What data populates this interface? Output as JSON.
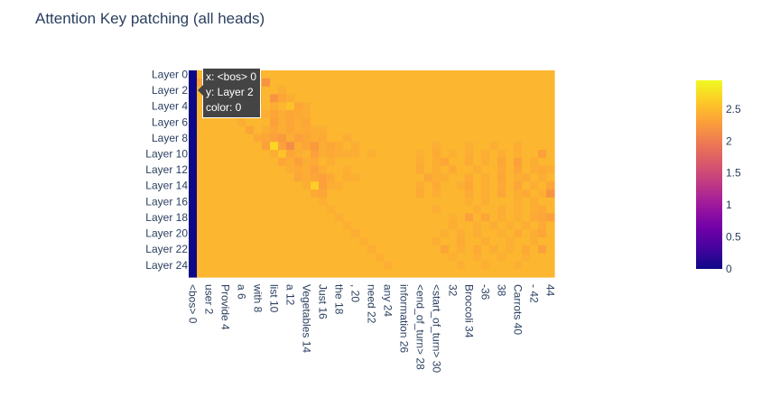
{
  "chart_data": {
    "type": "heatmap",
    "title": "Attention Key patching (all heads)",
    "x_tick_labels": [
      "<bos> 0",
      "user 2",
      "Provide 4",
      "a 6",
      "with 8",
      "list 10",
      "a 12",
      "Vegetables 14",
      "Just 16",
      "the 18",
      ", 20",
      "need 22",
      "any 24",
      "information 26",
      "<end_of_turn> 28",
      "<start_of_turn> 30",
      "32",
      "Broccoli 34",
      "-36",
      "38",
      "Carrots 40",
      "- 42",
      "44"
    ],
    "x_tick_positions": [
      0,
      2,
      4,
      6,
      8,
      10,
      12,
      14,
      16,
      18,
      20,
      22,
      24,
      26,
      28,
      30,
      32,
      34,
      36,
      38,
      40,
      42,
      44
    ],
    "n_positions": 45,
    "y_tick_labels": [
      "Layer 0",
      "Layer 2",
      "Layer 4",
      "Layer 6",
      "Layer 8",
      "Layer 10",
      "Layer 12",
      "Layer 14",
      "Layer 16",
      "Layer 18",
      "Layer 20",
      "Layer 22",
      "Layer 24"
    ],
    "y_tick_positions": [
      0,
      2,
      4,
      6,
      8,
      10,
      12,
      14,
      16,
      18,
      20,
      22,
      24
    ],
    "n_layers": 26,
    "base_value": 2.47,
    "zero_column": 0,
    "cells": [
      [
        1,
        2.3
      ],
      [
        2,
        2.2
      ],
      [
        5,
        2.45
      ],
      [
        9,
        2.2
      ],
      [
        2,
        2.35
      ],
      [
        7,
        2.4
      ],
      [
        11,
        2.4
      ],
      [
        3,
        2.3
      ],
      [
        6,
        2.35
      ],
      [
        7,
        2.3
      ],
      [
        8,
        2.35
      ],
      [
        10,
        2.2
      ],
      [
        11,
        2.35
      ],
      [
        12,
        2.4
      ],
      [
        4,
        2.35
      ],
      [
        10,
        2.4
      ],
      [
        12,
        2.55
      ],
      [
        13,
        2.35
      ],
      [
        14,
        2.4
      ],
      [
        5,
        2.35
      ],
      [
        9,
        2.4
      ],
      [
        10,
        2.35
      ],
      [
        11,
        2.4
      ],
      [
        12,
        2.35
      ],
      [
        13,
        2.38
      ],
      [
        14,
        2.4
      ],
      [
        6,
        2.4
      ],
      [
        10,
        2.3
      ],
      [
        11,
        2.4
      ],
      [
        12,
        2.35
      ],
      [
        13,
        2.4
      ],
      [
        14,
        2.35
      ],
      [
        7,
        2.35
      ],
      [
        9,
        2.4
      ],
      [
        10,
        2.35
      ],
      [
        11,
        2.4
      ],
      [
        12,
        2.35
      ],
      [
        13,
        2.4
      ],
      [
        14,
        2.38
      ],
      [
        15,
        2.4
      ],
      [
        16,
        2.4
      ],
      [
        8,
        2.38
      ],
      [
        9,
        2.35
      ],
      [
        10,
        2.3
      ],
      [
        11,
        2.25
      ],
      [
        12,
        2.4
      ],
      [
        13,
        2.3
      ],
      [
        14,
        2.35
      ],
      [
        15,
        2.4
      ],
      [
        16,
        2.38
      ],
      [
        19,
        2.4
      ],
      [
        9,
        2.3
      ],
      [
        10,
        2.72
      ],
      [
        11,
        2.3
      ],
      [
        12,
        2.15
      ],
      [
        13,
        2.4
      ],
      [
        14,
        2.35
      ],
      [
        15,
        2.25
      ],
      [
        16,
        2.4
      ],
      [
        17,
        2.35
      ],
      [
        18,
        2.4
      ],
      [
        20,
        2.4
      ],
      [
        30,
        2.4
      ],
      [
        34,
        2.4
      ],
      [
        37,
        2.4
      ],
      [
        40,
        2.4
      ],
      [
        10,
        2.4
      ],
      [
        11,
        2.55
      ],
      [
        12,
        2.35
      ],
      [
        13,
        2.4
      ],
      [
        14,
        2.45
      ],
      [
        15,
        2.3
      ],
      [
        16,
        2.4
      ],
      [
        17,
        2.38
      ],
      [
        18,
        2.4
      ],
      [
        19,
        2.4
      ],
      [
        20,
        2.4
      ],
      [
        22,
        2.42
      ],
      [
        28,
        2.42
      ],
      [
        30,
        2.38
      ],
      [
        32,
        2.42
      ],
      [
        34,
        2.4
      ],
      [
        36,
        2.4
      ],
      [
        38,
        2.4
      ],
      [
        40,
        2.42
      ],
      [
        43,
        2.3
      ],
      [
        11,
        2.35
      ],
      [
        12,
        2.4
      ],
      [
        13,
        2.3
      ],
      [
        14,
        2.4
      ],
      [
        15,
        2.38
      ],
      [
        17,
        2.4
      ],
      [
        28,
        2.4
      ],
      [
        30,
        2.4
      ],
      [
        31,
        2.35
      ],
      [
        34,
        2.38
      ],
      [
        36,
        2.4
      ],
      [
        38,
        2.35
      ],
      [
        40,
        2.3
      ],
      [
        42,
        2.4
      ],
      [
        12,
        2.4
      ],
      [
        13,
        2.38
      ],
      [
        14,
        2.4
      ],
      [
        15,
        2.3
      ],
      [
        16,
        2.4
      ],
      [
        19,
        2.42
      ],
      [
        28,
        2.38
      ],
      [
        30,
        2.4
      ],
      [
        32,
        2.38
      ],
      [
        35,
        2.4
      ],
      [
        38,
        2.38
      ],
      [
        40,
        2.35
      ],
      [
        42,
        2.4
      ],
      [
        43,
        2.38
      ],
      [
        44,
        2.4
      ],
      [
        13,
        2.35
      ],
      [
        14,
        2.4
      ],
      [
        15,
        2.35
      ],
      [
        16,
        2.3
      ],
      [
        17,
        2.38
      ],
      [
        19,
        2.4
      ],
      [
        20,
        2.42
      ],
      [
        29,
        2.35
      ],
      [
        30,
        2.42
      ],
      [
        31,
        2.4
      ],
      [
        34,
        2.38
      ],
      [
        36,
        2.4
      ],
      [
        38,
        2.35
      ],
      [
        40,
        2.4
      ],
      [
        41,
        2.38
      ],
      [
        43,
        2.4
      ],
      [
        14,
        2.4
      ],
      [
        15,
        2.65
      ],
      [
        16,
        2.3
      ],
      [
        17,
        2.4
      ],
      [
        18,
        2.42
      ],
      [
        28,
        2.4
      ],
      [
        30,
        2.38
      ],
      [
        33,
        2.4
      ],
      [
        34,
        2.35
      ],
      [
        36,
        2.42
      ],
      [
        38,
        2.38
      ],
      [
        40,
        2.35
      ],
      [
        42,
        2.4
      ],
      [
        44,
        2.35
      ],
      [
        15,
        2.38
      ],
      [
        16,
        2.35
      ],
      [
        28,
        2.38
      ],
      [
        30,
        2.4
      ],
      [
        34,
        2.38
      ],
      [
        36,
        2.4
      ],
      [
        38,
        2.35
      ],
      [
        40,
        2.4
      ],
      [
        41,
        2.38
      ],
      [
        43,
        2.42
      ],
      [
        44,
        2.2
      ],
      [
        16,
        2.42
      ],
      [
        34,
        2.42
      ],
      [
        36,
        2.4
      ],
      [
        40,
        2.42
      ],
      [
        42,
        2.4
      ],
      [
        17,
        2.42
      ],
      [
        30,
        2.4
      ],
      [
        35,
        2.42
      ],
      [
        38,
        2.4
      ],
      [
        40,
        2.42
      ],
      [
        42,
        2.4
      ],
      [
        43,
        2.38
      ],
      [
        18,
        2.4
      ],
      [
        32,
        2.42
      ],
      [
        34,
        2.3
      ],
      [
        36,
        2.35
      ],
      [
        38,
        2.4
      ],
      [
        40,
        2.42
      ],
      [
        42,
        2.38
      ],
      [
        43,
        2.35
      ],
      [
        44,
        2.3
      ],
      [
        19,
        2.42
      ],
      [
        32,
        2.4
      ],
      [
        35,
        2.42
      ],
      [
        37,
        2.4
      ],
      [
        39,
        2.42
      ],
      [
        41,
        2.4
      ],
      [
        43,
        2.38
      ],
      [
        20,
        2.4
      ],
      [
        31,
        2.42
      ],
      [
        33,
        2.4
      ],
      [
        35,
        2.4
      ],
      [
        38,
        2.42
      ],
      [
        40,
        2.38
      ],
      [
        42,
        2.4
      ],
      [
        43,
        2.35
      ],
      [
        21,
        2.42
      ],
      [
        30,
        2.4
      ],
      [
        33,
        2.38
      ],
      [
        36,
        2.4
      ],
      [
        39,
        2.42
      ],
      [
        42,
        2.4
      ],
      [
        22,
        2.4
      ],
      [
        31,
        2.35
      ],
      [
        33,
        2.4
      ],
      [
        35,
        2.38
      ],
      [
        37,
        2.4
      ],
      [
        39,
        2.42
      ],
      [
        41,
        2.38
      ],
      [
        43,
        2.3
      ],
      [
        23,
        2.42
      ],
      [
        32,
        2.42
      ],
      [
        35,
        2.42
      ],
      [
        38,
        2.42
      ],
      [
        41,
        2.42
      ],
      [
        24,
        2.42
      ],
      [
        33,
        2.42
      ],
      [
        36,
        2.42
      ],
      [
        40,
        2.42
      ]
    ],
    "cell_layers": [
      1,
      1,
      1,
      1,
      2,
      2,
      2,
      3,
      3,
      3,
      3,
      3,
      3,
      3,
      4,
      4,
      4,
      4,
      4,
      5,
      5,
      5,
      5,
      5,
      5,
      5,
      6,
      6,
      6,
      6,
      6,
      6,
      7,
      7,
      7,
      7,
      7,
      7,
      7,
      7,
      7,
      8,
      8,
      8,
      8,
      8,
      8,
      8,
      8,
      8,
      8,
      9,
      9,
      9,
      9,
      9,
      9,
      9,
      9,
      9,
      9,
      9,
      9,
      9,
      9,
      9,
      10,
      10,
      10,
      10,
      10,
      10,
      10,
      10,
      10,
      10,
      10,
      10,
      10,
      10,
      10,
      10,
      10,
      10,
      10,
      10,
      11,
      11,
      11,
      11,
      11,
      11,
      11,
      11,
      11,
      11,
      11,
      11,
      11,
      11,
      12,
      12,
      12,
      12,
      12,
      12,
      12,
      12,
      12,
      12,
      12,
      12,
      12,
      12,
      12,
      13,
      13,
      13,
      13,
      13,
      13,
      13,
      13,
      13,
      13,
      13,
      13,
      13,
      13,
      13,
      13,
      14,
      14,
      14,
      14,
      14,
      14,
      14,
      14,
      14,
      14,
      14,
      14,
      14,
      14,
      15,
      15,
      15,
      15,
      15,
      15,
      15,
      15,
      15,
      15,
      15,
      16,
      16,
      16,
      16,
      16,
      17,
      17,
      17,
      17,
      17,
      17,
      17,
      18,
      18,
      18,
      18,
      18,
      18,
      18,
      18,
      18,
      19,
      19,
      19,
      19,
      19,
      19,
      19,
      20,
      20,
      20,
      20,
      20,
      20,
      20,
      20,
      21,
      21,
      21,
      21,
      21,
      21,
      22,
      22,
      22,
      22,
      22,
      22,
      22,
      22,
      23,
      23,
      23,
      23,
      23,
      24,
      24,
      24,
      24
    ],
    "colorscale": "plasma",
    "zmin": 0,
    "zmax": 2.95,
    "colorbar_ticks": [
      "0",
      "0.5",
      "1",
      "1.5",
      "2",
      "2.5"
    ],
    "colorbar_tick_values": [
      0,
      0.5,
      1,
      1.5,
      2,
      2.5
    ],
    "tooltip": {
      "x": "x: <bos> 0",
      "y": "y: Layer 2",
      "color": "color: 0"
    }
  }
}
